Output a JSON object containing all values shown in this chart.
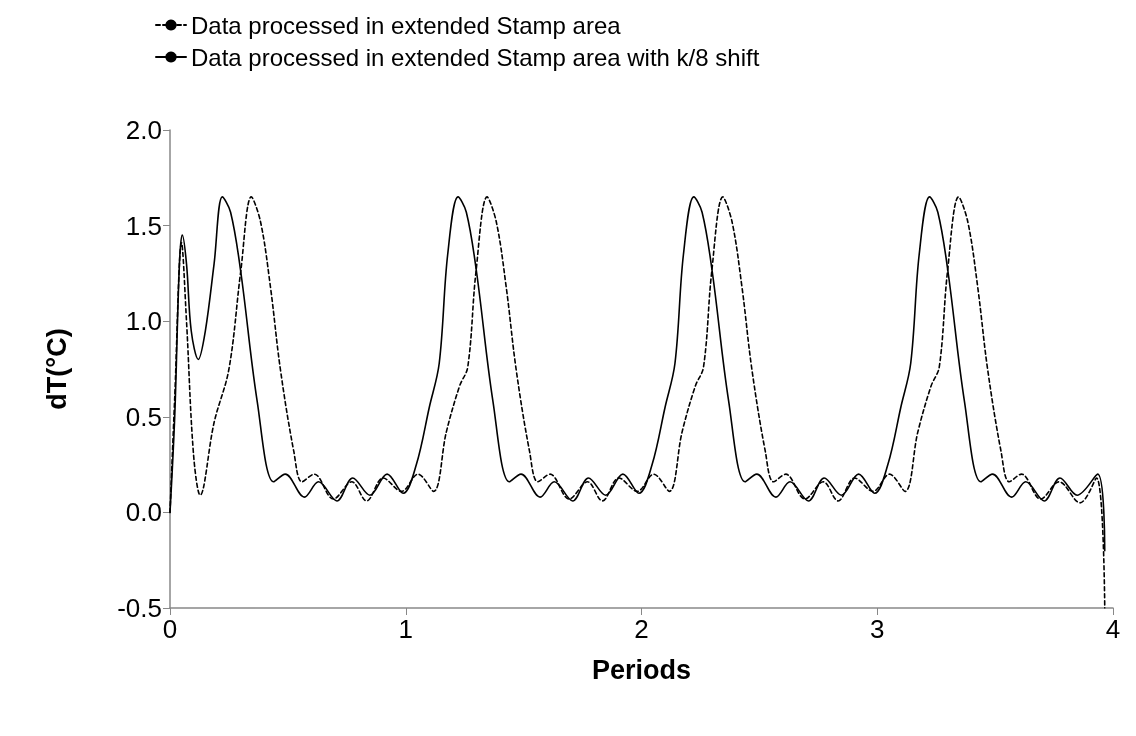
{
  "chart_data": {
    "type": "line",
    "xlabel": "Periods",
    "ylabel": "dT(°C)",
    "xlim": [
      0,
      4
    ],
    "xticks": [
      0,
      1,
      2,
      3,
      4
    ],
    "ylim": [
      -0.5,
      2
    ],
    "yticks": [
      {
        "value": -0.5,
        "label": "-0.5"
      },
      {
        "value": 0,
        "label": "0.0"
      },
      {
        "value": 0.5,
        "label": "0.5"
      },
      {
        "value": 1,
        "label": "1.0"
      },
      {
        "value": 1.5,
        "label": "1.5"
      },
      {
        "value": 2,
        "label": "2.0"
      }
    ],
    "grid": false,
    "legend": "top left",
    "marker": "none",
    "series": [
      {
        "name": "Data processed in extended Stamp area",
        "color": "#000000",
        "line_style": "dashed",
        "x": [
          0,
          0.02,
          0.049,
          0.07,
          0.1,
          0.128,
          0.187,
          0.25,
          0.3,
          0.345,
          0.384,
          0.426,
          0.468,
          0.525,
          0.56,
          0.612,
          0.693,
          0.771,
          0.834,
          0.904,
          0.982,
          1.052,
          1.118,
          1.172,
          1.228,
          1.263,
          1.298,
          1.345,
          1.384,
          1.426,
          1.468,
          1.525,
          1.56,
          1.612,
          1.693,
          1.771,
          1.834,
          1.904,
          1.982,
          2.052,
          2.118,
          2.172,
          2.228,
          2.263,
          2.298,
          2.345,
          2.384,
          2.426,
          2.468,
          2.525,
          2.56,
          2.612,
          2.693,
          2.771,
          2.834,
          2.904,
          2.982,
          3.052,
          3.118,
          3.172,
          3.228,
          3.263,
          3.298,
          3.345,
          3.384,
          3.426,
          3.468,
          3.525,
          3.56,
          3.612,
          3.693,
          3.771,
          3.86,
          3.93,
          3.965
        ],
        "values": [
          0,
          0.6,
          1.41,
          1.0,
          0.3,
          0.09,
          0.47,
          0.75,
          1.26,
          1.65,
          1.52,
          1.18,
          0.75,
          0.32,
          0.16,
          0.2,
          0.07,
          0.16,
          0.06,
          0.18,
          0.11,
          0.2,
          0.11,
          0.42,
          0.66,
          0.76,
          1.26,
          1.65,
          1.52,
          1.18,
          0.75,
          0.32,
          0.16,
          0.2,
          0.07,
          0.16,
          0.06,
          0.18,
          0.11,
          0.2,
          0.11,
          0.42,
          0.66,
          0.76,
          1.26,
          1.65,
          1.52,
          1.18,
          0.75,
          0.32,
          0.16,
          0.2,
          0.07,
          0.16,
          0.06,
          0.18,
          0.11,
          0.2,
          0.11,
          0.42,
          0.66,
          0.76,
          1.26,
          1.65,
          1.52,
          1.18,
          0.75,
          0.32,
          0.16,
          0.2,
          0.07,
          0.16,
          0.05,
          0.18,
          -0.5
        ]
      },
      {
        "name": "Data processed in extended Stamp area with k/8 shift",
        "color": "#000000",
        "line_style": "solid",
        "x": [
          0,
          0.02,
          0.04,
          0.052,
          0.07,
          0.09,
          0.12,
          0.15,
          0.187,
          0.222,
          0.257,
          0.3,
          0.37,
          0.44,
          0.489,
          0.57,
          0.63,
          0.708,
          0.775,
          0.848,
          0.921,
          0.989,
          1.045,
          1.1,
          1.142,
          1.178,
          1.222,
          1.257,
          1.3,
          1.37,
          1.44,
          1.489,
          1.57,
          1.63,
          1.708,
          1.775,
          1.848,
          1.921,
          1.989,
          2.045,
          2.1,
          2.142,
          2.178,
          2.222,
          2.257,
          2.3,
          2.37,
          2.44,
          2.489,
          2.57,
          2.63,
          2.708,
          2.775,
          2.848,
          2.921,
          2.989,
          3.045,
          3.1,
          3.142,
          3.178,
          3.222,
          3.257,
          3.3,
          3.37,
          3.44,
          3.489,
          3.57,
          3.63,
          3.708,
          3.775,
          3.848,
          3.935,
          3.965
        ],
        "values": [
          0,
          0.5,
          1.3,
          1.45,
          1.3,
          0.95,
          0.8,
          0.95,
          1.3,
          1.65,
          1.57,
          1.26,
          0.58,
          0.16,
          0.2,
          0.08,
          0.16,
          0.06,
          0.18,
          0.09,
          0.2,
          0.1,
          0.25,
          0.55,
          0.78,
          1.35,
          1.65,
          1.57,
          1.26,
          0.58,
          0.16,
          0.2,
          0.08,
          0.16,
          0.06,
          0.18,
          0.09,
          0.2,
          0.1,
          0.25,
          0.55,
          0.78,
          1.35,
          1.65,
          1.57,
          1.26,
          0.58,
          0.16,
          0.2,
          0.08,
          0.16,
          0.06,
          0.18,
          0.09,
          0.2,
          0.1,
          0.25,
          0.55,
          0.78,
          1.35,
          1.65,
          1.57,
          1.26,
          0.58,
          0.16,
          0.2,
          0.08,
          0.16,
          0.06,
          0.18,
          0.09,
          0.2,
          -0.2
        ]
      }
    ]
  }
}
